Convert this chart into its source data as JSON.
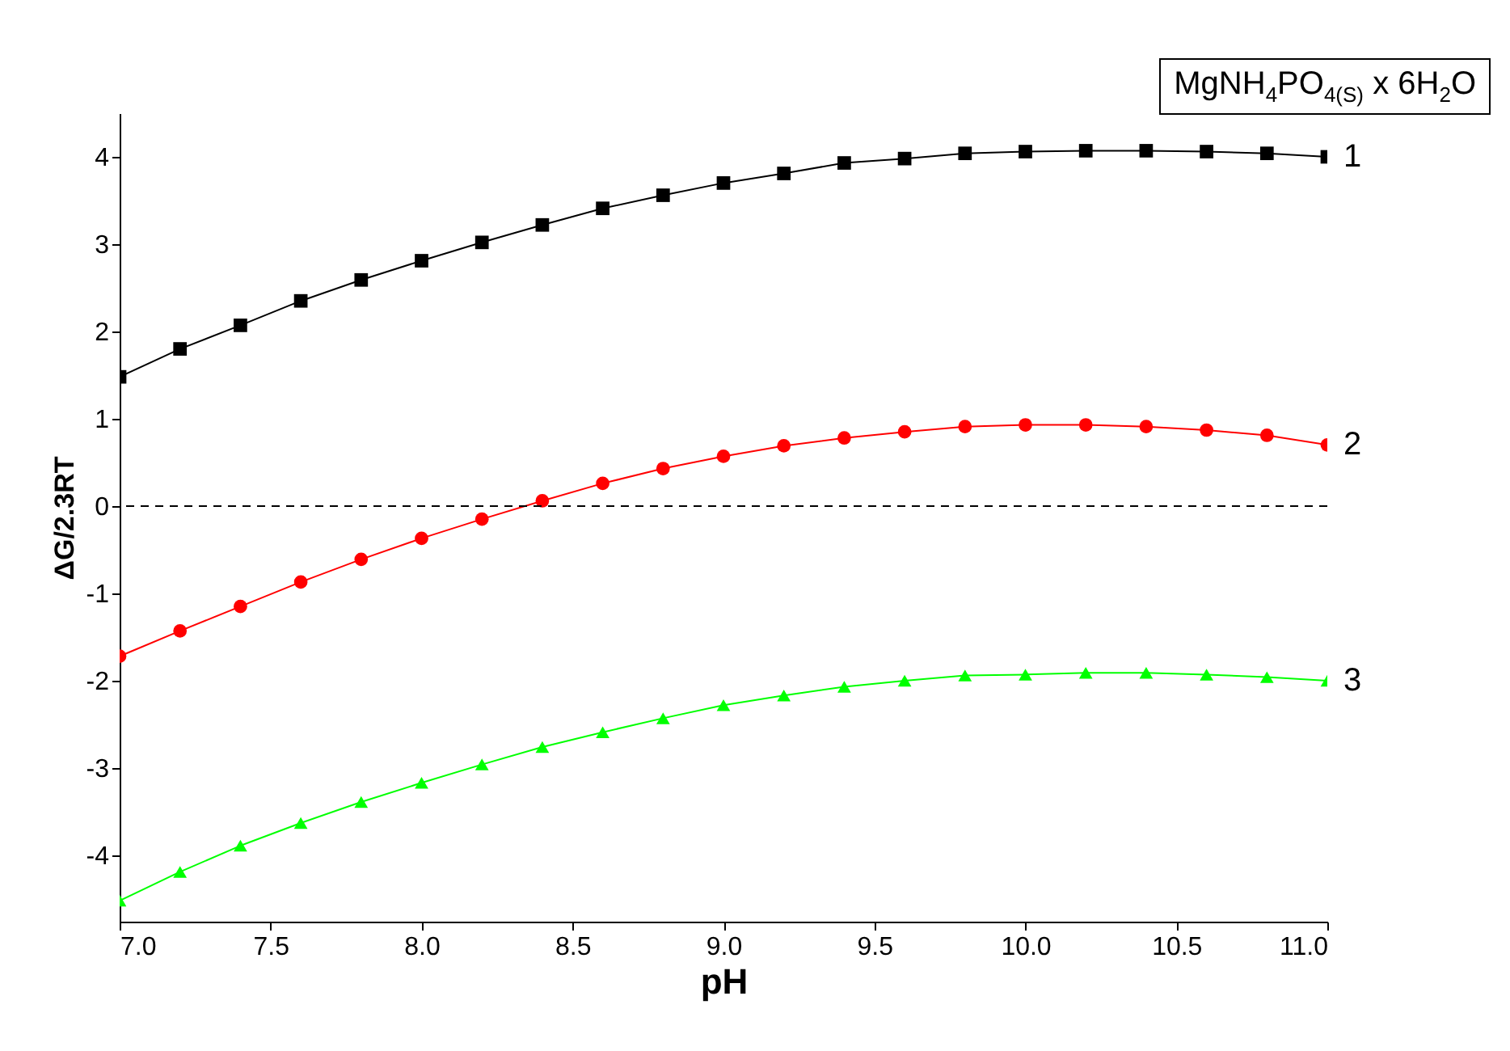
{
  "chart_data": {
    "type": "line",
    "xlabel": "pH",
    "ylabel": "ΔG/2.3RT",
    "annotations": [
      "MgNH$_{4}$PO$_{4(S)}$ x 6H$_{2}$O"
    ],
    "x": [
      7.0,
      7.2,
      7.4,
      7.6,
      7.8,
      8.0,
      8.2,
      8.4,
      8.6,
      8.8,
      9.0,
      9.2,
      9.4,
      9.6,
      9.8,
      10.0,
      10.2,
      10.4,
      10.6,
      10.8,
      11.0
    ],
    "series": [
      {
        "name": "1",
        "color": "#000000",
        "marker": "square",
        "values": [
          1.48,
          1.8,
          2.07,
          2.35,
          2.59,
          2.81,
          3.02,
          3.22,
          3.41,
          3.56,
          3.7,
          3.81,
          3.93,
          3.98,
          4.04,
          4.06,
          4.07,
          4.07,
          4.06,
          4.04,
          4.0
        ]
      },
      {
        "name": "2",
        "color": "#ff0000",
        "marker": "circle",
        "values": [
          -1.72,
          -1.43,
          -1.15,
          -0.87,
          -0.61,
          -0.37,
          -0.15,
          0.06,
          0.26,
          0.43,
          0.57,
          0.69,
          0.78,
          0.85,
          0.91,
          0.93,
          0.93,
          0.91,
          0.87,
          0.81,
          0.7
        ]
      },
      {
        "name": "3",
        "color": "#00ff00",
        "marker": "triangle",
        "values": [
          -4.52,
          -4.19,
          -3.89,
          -3.63,
          -3.39,
          -3.17,
          -2.96,
          -2.76,
          -2.59,
          -2.43,
          -2.28,
          -2.17,
          -2.07,
          -2.0,
          -1.94,
          -1.93,
          -1.91,
          -1.91,
          -1.93,
          -1.96,
          -2.0
        ]
      }
    ],
    "xlim": [
      7,
      11
    ],
    "ylim": [
      -4.76,
      4.5
    ],
    "xticks": [
      {
        "value": 7,
        "label": "7.0"
      },
      {
        "value": 7.5,
        "label": "7.5"
      },
      {
        "value": 8,
        "label": "8.0"
      },
      {
        "value": 8.5,
        "label": "8.5"
      },
      {
        "value": 9,
        "label": "9.0"
      },
      {
        "value": 9.5,
        "label": "9.5"
      },
      {
        "value": 10,
        "label": "10.0"
      },
      {
        "value": 10.5,
        "label": "10.5"
      },
      {
        "value": 11,
        "label": "11.0"
      }
    ],
    "yticks": [
      -4,
      -3,
      -2,
      -1,
      0,
      1,
      2,
      3,
      4
    ],
    "ref_lines": [
      {
        "axis": "y",
        "value": 0,
        "line_style": "dashed",
        "color": "#000000"
      }
    ],
    "grid": false,
    "legend": false,
    "line_style": "solid"
  }
}
